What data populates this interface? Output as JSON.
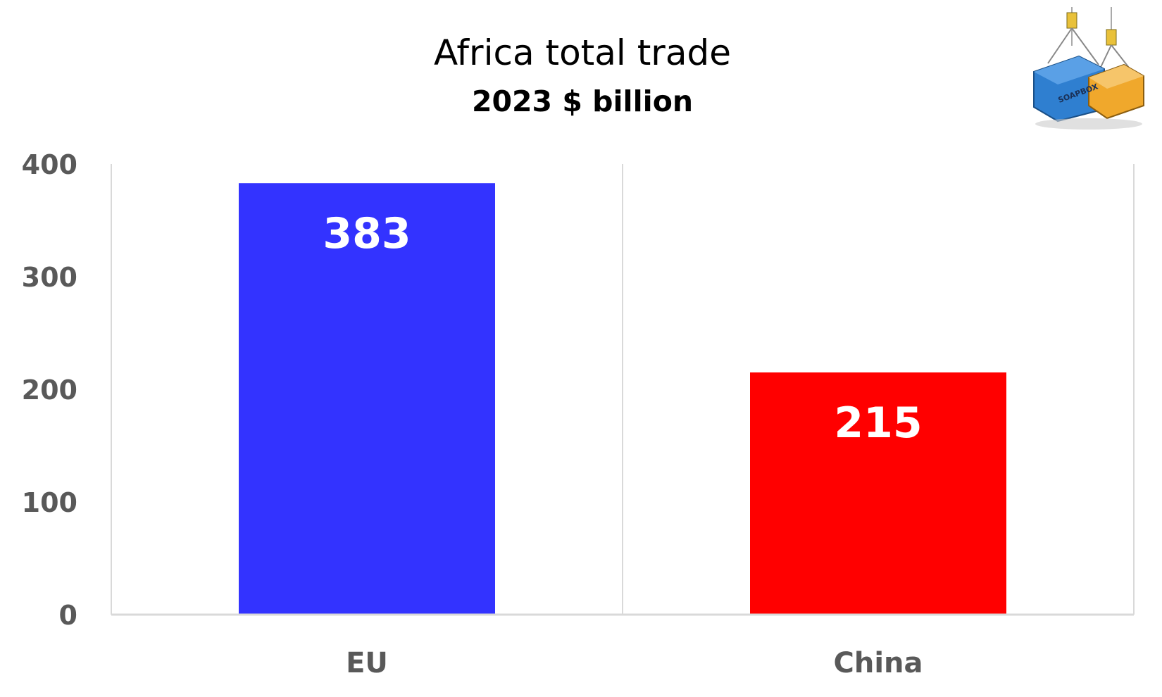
{
  "chart_data": {
    "type": "bar",
    "title": "Africa total trade",
    "subtitle": "2023 $ billion",
    "categories": [
      "EU",
      "China"
    ],
    "values": [
      383,
      215
    ],
    "data_labels": [
      "383",
      "215"
    ],
    "colors": [
      "#3333ff",
      "#ff0000"
    ],
    "ylim": [
      0,
      400
    ],
    "yticks": [
      0,
      100,
      200,
      300,
      400
    ],
    "ytick_labels": [
      "0",
      "100",
      "200",
      "300",
      "400"
    ],
    "xlabel": "",
    "ylabel": "",
    "grid": "vertical category separators",
    "legend": "none"
  },
  "logo": {
    "text": "SOAPBOX",
    "icon": "shipping-containers-icon",
    "colors": [
      "#2f7fd0",
      "#f0a82c"
    ]
  }
}
